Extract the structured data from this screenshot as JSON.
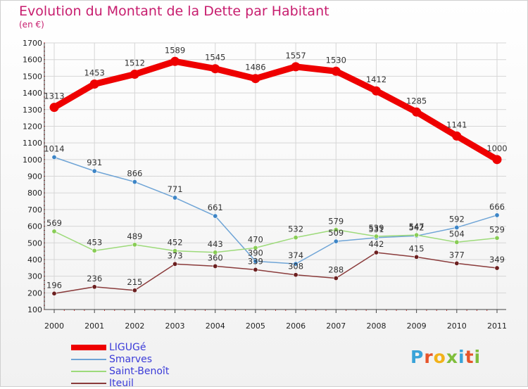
{
  "header": {
    "title": "Evolution du Montant de la Dette par Habitant",
    "unit": "(en €)"
  },
  "brand": {
    "name": "Proxiti",
    "letter_colors": [
      "#3aa3d8",
      "#e6542a",
      "#f2b21a",
      "#7fbe3c",
      "#3aa3d8",
      "#e6542a",
      "#7fbe3c"
    ]
  },
  "chart_data": {
    "type": "line",
    "title": "Evolution du Montant de la Dette par Habitant",
    "subtitle": "(en €)",
    "xlabel": "",
    "ylabel": "",
    "categories": [
      "2000",
      "2001",
      "2002",
      "2003",
      "2004",
      "2005",
      "2006",
      "2007",
      "2008",
      "2009",
      "2010",
      "2011"
    ],
    "ylim": [
      100,
      1700
    ],
    "yticks": [
      100,
      200,
      300,
      400,
      500,
      600,
      700,
      800,
      900,
      1000,
      1100,
      1200,
      1300,
      1400,
      1500,
      1600,
      1700
    ],
    "grid": true,
    "legend_position": "bottom-left",
    "series": [
      {
        "name": "LIGUGé",
        "color": "#ee0000",
        "emphasis": true,
        "values": [
          1313,
          1453,
          1512,
          1589,
          1545,
          1486,
          1557,
          1530,
          1412,
          1285,
          1141,
          1000
        ]
      },
      {
        "name": "Smarves",
        "color": "#6ea4d6",
        "marker_color": "#3d85c6",
        "values": [
          1014,
          931,
          866,
          771,
          661,
          390,
          374,
          509,
          531,
          542,
          592,
          666
        ]
      },
      {
        "name": "Saint-Benoît",
        "color": "#9dda7a",
        "marker_color": "#88cc55",
        "values": [
          569,
          453,
          489,
          452,
          443,
          470,
          532,
          579,
          539,
          547,
          504,
          529
        ]
      },
      {
        "name": "Iteuil",
        "color": "#8a3b3b",
        "marker_color": "#6b1f1f",
        "values": [
          196,
          236,
          215,
          373,
          360,
          339,
          308,
          288,
          442,
          415,
          377,
          349
        ]
      }
    ]
  }
}
